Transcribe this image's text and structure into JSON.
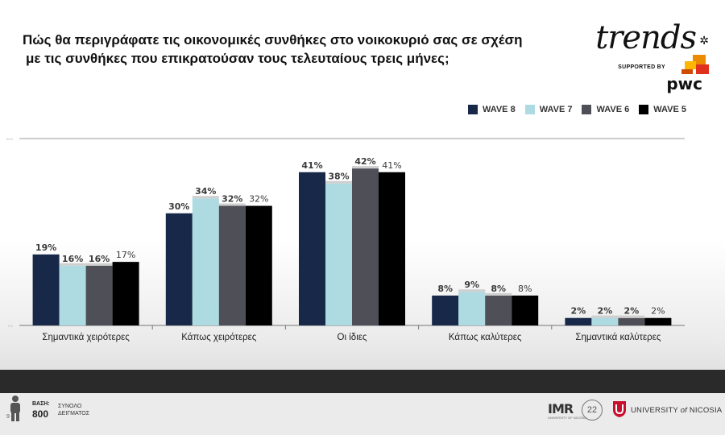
{
  "header": {
    "title_line1": "Πώς θα περιγράφατε τις οικονομικές συνθήκες στο νοικοκυριό σας σε σχέση",
    "title_line2": "με τις συνθήκες που επικρατούσαν τους τελευταίους τρεις μήνες;"
  },
  "branding": {
    "trends": "trends",
    "supported_by": "SUPPORTED BY",
    "pwc": "pwc",
    "pwc_colors": [
      "#e0301e",
      "#eb8c00",
      "#ffb600",
      "#d04a02"
    ]
  },
  "legend": [
    {
      "label": "WAVE 8",
      "color": "#172849"
    },
    {
      "label": "WAVE 7",
      "color": "#aedae1"
    },
    {
      "label": "WAVE 6",
      "color": "#4f5057"
    },
    {
      "label": "WAVE 5",
      "color": "#000000"
    }
  ],
  "chart_data": {
    "type": "bar",
    "title": "Πώς θα περιγράφατε τις οικονομικές συνθήκες στο νοικοκυριό σας σε σχέση με τις συνθήκες που επικρατούσαν τους τελευταίους τρεις μήνες;",
    "categories": [
      "Σημαντικά χειρότερες",
      "Κάπως χειρότερες",
      "Οι ίδιες",
      "Κάπως καλύτερες",
      "Σημαντικά καλύτερες"
    ],
    "series": [
      {
        "name": "WAVE 8",
        "color": "#172849",
        "values": [
          19,
          30,
          41,
          8,
          2
        ]
      },
      {
        "name": "WAVE 7",
        "color": "#aedae1",
        "values": [
          16,
          34,
          38,
          9,
          2
        ]
      },
      {
        "name": "WAVE 6",
        "color": "#4f5057",
        "values": [
          16,
          32,
          42,
          8,
          2
        ]
      },
      {
        "name": "WAVE 5",
        "color": "#000000",
        "values": [
          17,
          32,
          41,
          8,
          2
        ]
      }
    ],
    "value_suffix": "%",
    "ylim": [
      0,
      50
    ],
    "y_ticks": [
      "0%",
      "50%"
    ],
    "grid": false,
    "legend_position": "top-right",
    "xlabel": "",
    "ylabel": ""
  },
  "footer": {
    "base_label": "ΒΑΣΗ:",
    "base_value": "800",
    "sample_label": "ΣΥΝΟΛΟ ΔΕΙΓΜΑΤΟΣ",
    "page_number": "9",
    "imr_logo": "IMR",
    "imr_sub": "UNIVERSITY OF NICOSIA",
    "anniversary": "22",
    "unic_prefix": "UNIVERSITY",
    "unic_of": "of",
    "unic_suffix": "NICOSIA"
  }
}
